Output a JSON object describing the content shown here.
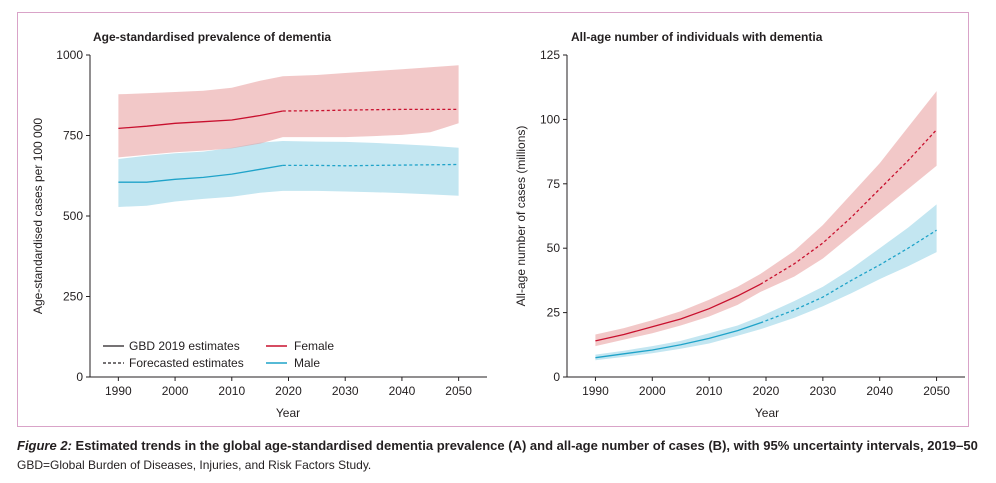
{
  "caption": {
    "figure_label": "Figure 2:",
    "text": " Estimated trends in the global age-standardised dementia prevalence (A) and all-age number of cases (B), with 95% uncertainty intervals, 2019–50",
    "footnote": "GBD=Global Burden of Diseases, Injuries, and Risk Factors Study."
  },
  "colors": {
    "female": "#c8102e",
    "female_band": "#f2c4c4",
    "male": "#1fa3c9",
    "male_band": "#c3e6f1",
    "axis": "#231f20",
    "frame": "#d9a3c8"
  },
  "legend": {
    "gbd_label": "GBD 2019 estimates",
    "forecast_label": "Forecasted estimates",
    "female_label": "Female",
    "male_label": "Male"
  },
  "chart_data": [
    {
      "type": "line",
      "title": "Age-standardised prevalence of dementia",
      "xlabel": "Year",
      "ylabel": "Age-standardised cases per 100 000",
      "xlim": [
        1985,
        2055
      ],
      "ylim": [
        0,
        1000
      ],
      "xticks": [
        1990,
        2000,
        2010,
        2020,
        2030,
        2040,
        2050
      ],
      "yticks": [
        0,
        250,
        500,
        750,
        1000
      ],
      "ytick_labels": [
        "0",
        "250",
        "500",
        "750",
        "1000"
      ],
      "forecast_start": 2019,
      "series": [
        {
          "name": "Female",
          "x": [
            1990,
            1995,
            2000,
            2005,
            2010,
            2015,
            2019,
            2025,
            2030,
            2035,
            2040,
            2045,
            2050
          ],
          "value": [
            772,
            779,
            788,
            793,
            798,
            812,
            826,
            827,
            829,
            830,
            831,
            831,
            831
          ],
          "lower": [
            682,
            690,
            698,
            703,
            710,
            725,
            745,
            745,
            745,
            748,
            752,
            760,
            788
          ],
          "upper": [
            878,
            881,
            885,
            889,
            898,
            920,
            934,
            938,
            944,
            950,
            956,
            962,
            968
          ]
        },
        {
          "name": "Male",
          "x": [
            1990,
            1995,
            2000,
            2005,
            2010,
            2015,
            2019,
            2025,
            2030,
            2035,
            2040,
            2045,
            2050
          ],
          "value": [
            605,
            605,
            614,
            620,
            630,
            645,
            657,
            657,
            656,
            657,
            658,
            659,
            660
          ],
          "lower": [
            528,
            532,
            545,
            553,
            560,
            572,
            578,
            578,
            576,
            574,
            571,
            567,
            563
          ],
          "upper": [
            677,
            687,
            695,
            700,
            712,
            728,
            733,
            731,
            730,
            727,
            723,
            718,
            712
          ]
        }
      ]
    },
    {
      "type": "line",
      "title": "All-age number of individuals with dementia",
      "xlabel": "Year",
      "ylabel": "All-age number of cases (millions)",
      "xlim": [
        1985,
        2055
      ],
      "ylim": [
        0,
        125
      ],
      "xticks": [
        1990,
        2000,
        2010,
        2020,
        2030,
        2040,
        2050
      ],
      "yticks": [
        0,
        25,
        50,
        75,
        100,
        125
      ],
      "ytick_labels": [
        "0",
        "25",
        "50",
        "75",
        "100",
        "125"
      ],
      "forecast_start": 2019,
      "series": [
        {
          "name": "Female",
          "x": [
            1990,
            1995,
            2000,
            2005,
            2010,
            2015,
            2019,
            2025,
            2030,
            2035,
            2040,
            2045,
            2050
          ],
          "value": [
            14,
            16.5,
            19.5,
            22.5,
            26.5,
            31.5,
            36,
            44,
            52,
            62,
            73,
            84,
            96
          ],
          "lower": [
            12,
            14.5,
            17,
            20,
            23.5,
            28,
            33,
            39,
            46,
            55,
            64,
            73,
            82
          ],
          "upper": [
            16.5,
            19,
            22,
            25.5,
            30,
            35,
            40,
            49,
            59,
            71,
            83,
            97,
            111
          ]
        },
        {
          "name": "Male",
          "x": [
            1990,
            1995,
            2000,
            2005,
            2010,
            2015,
            2019,
            2025,
            2030,
            2035,
            2040,
            2045,
            2050
          ],
          "value": [
            7.5,
            9,
            10.5,
            12.5,
            15,
            18,
            21,
            26,
            31,
            37.5,
            43.5,
            50,
            57
          ],
          "lower": [
            6.5,
            7.8,
            9.2,
            11,
            13,
            16,
            18.5,
            23,
            27.5,
            32.5,
            38,
            43,
            48.5
          ],
          "upper": [
            8.7,
            10.2,
            12,
            14,
            17,
            20,
            23.5,
            29.5,
            35,
            42,
            50,
            58,
            67
          ]
        }
      ]
    }
  ]
}
